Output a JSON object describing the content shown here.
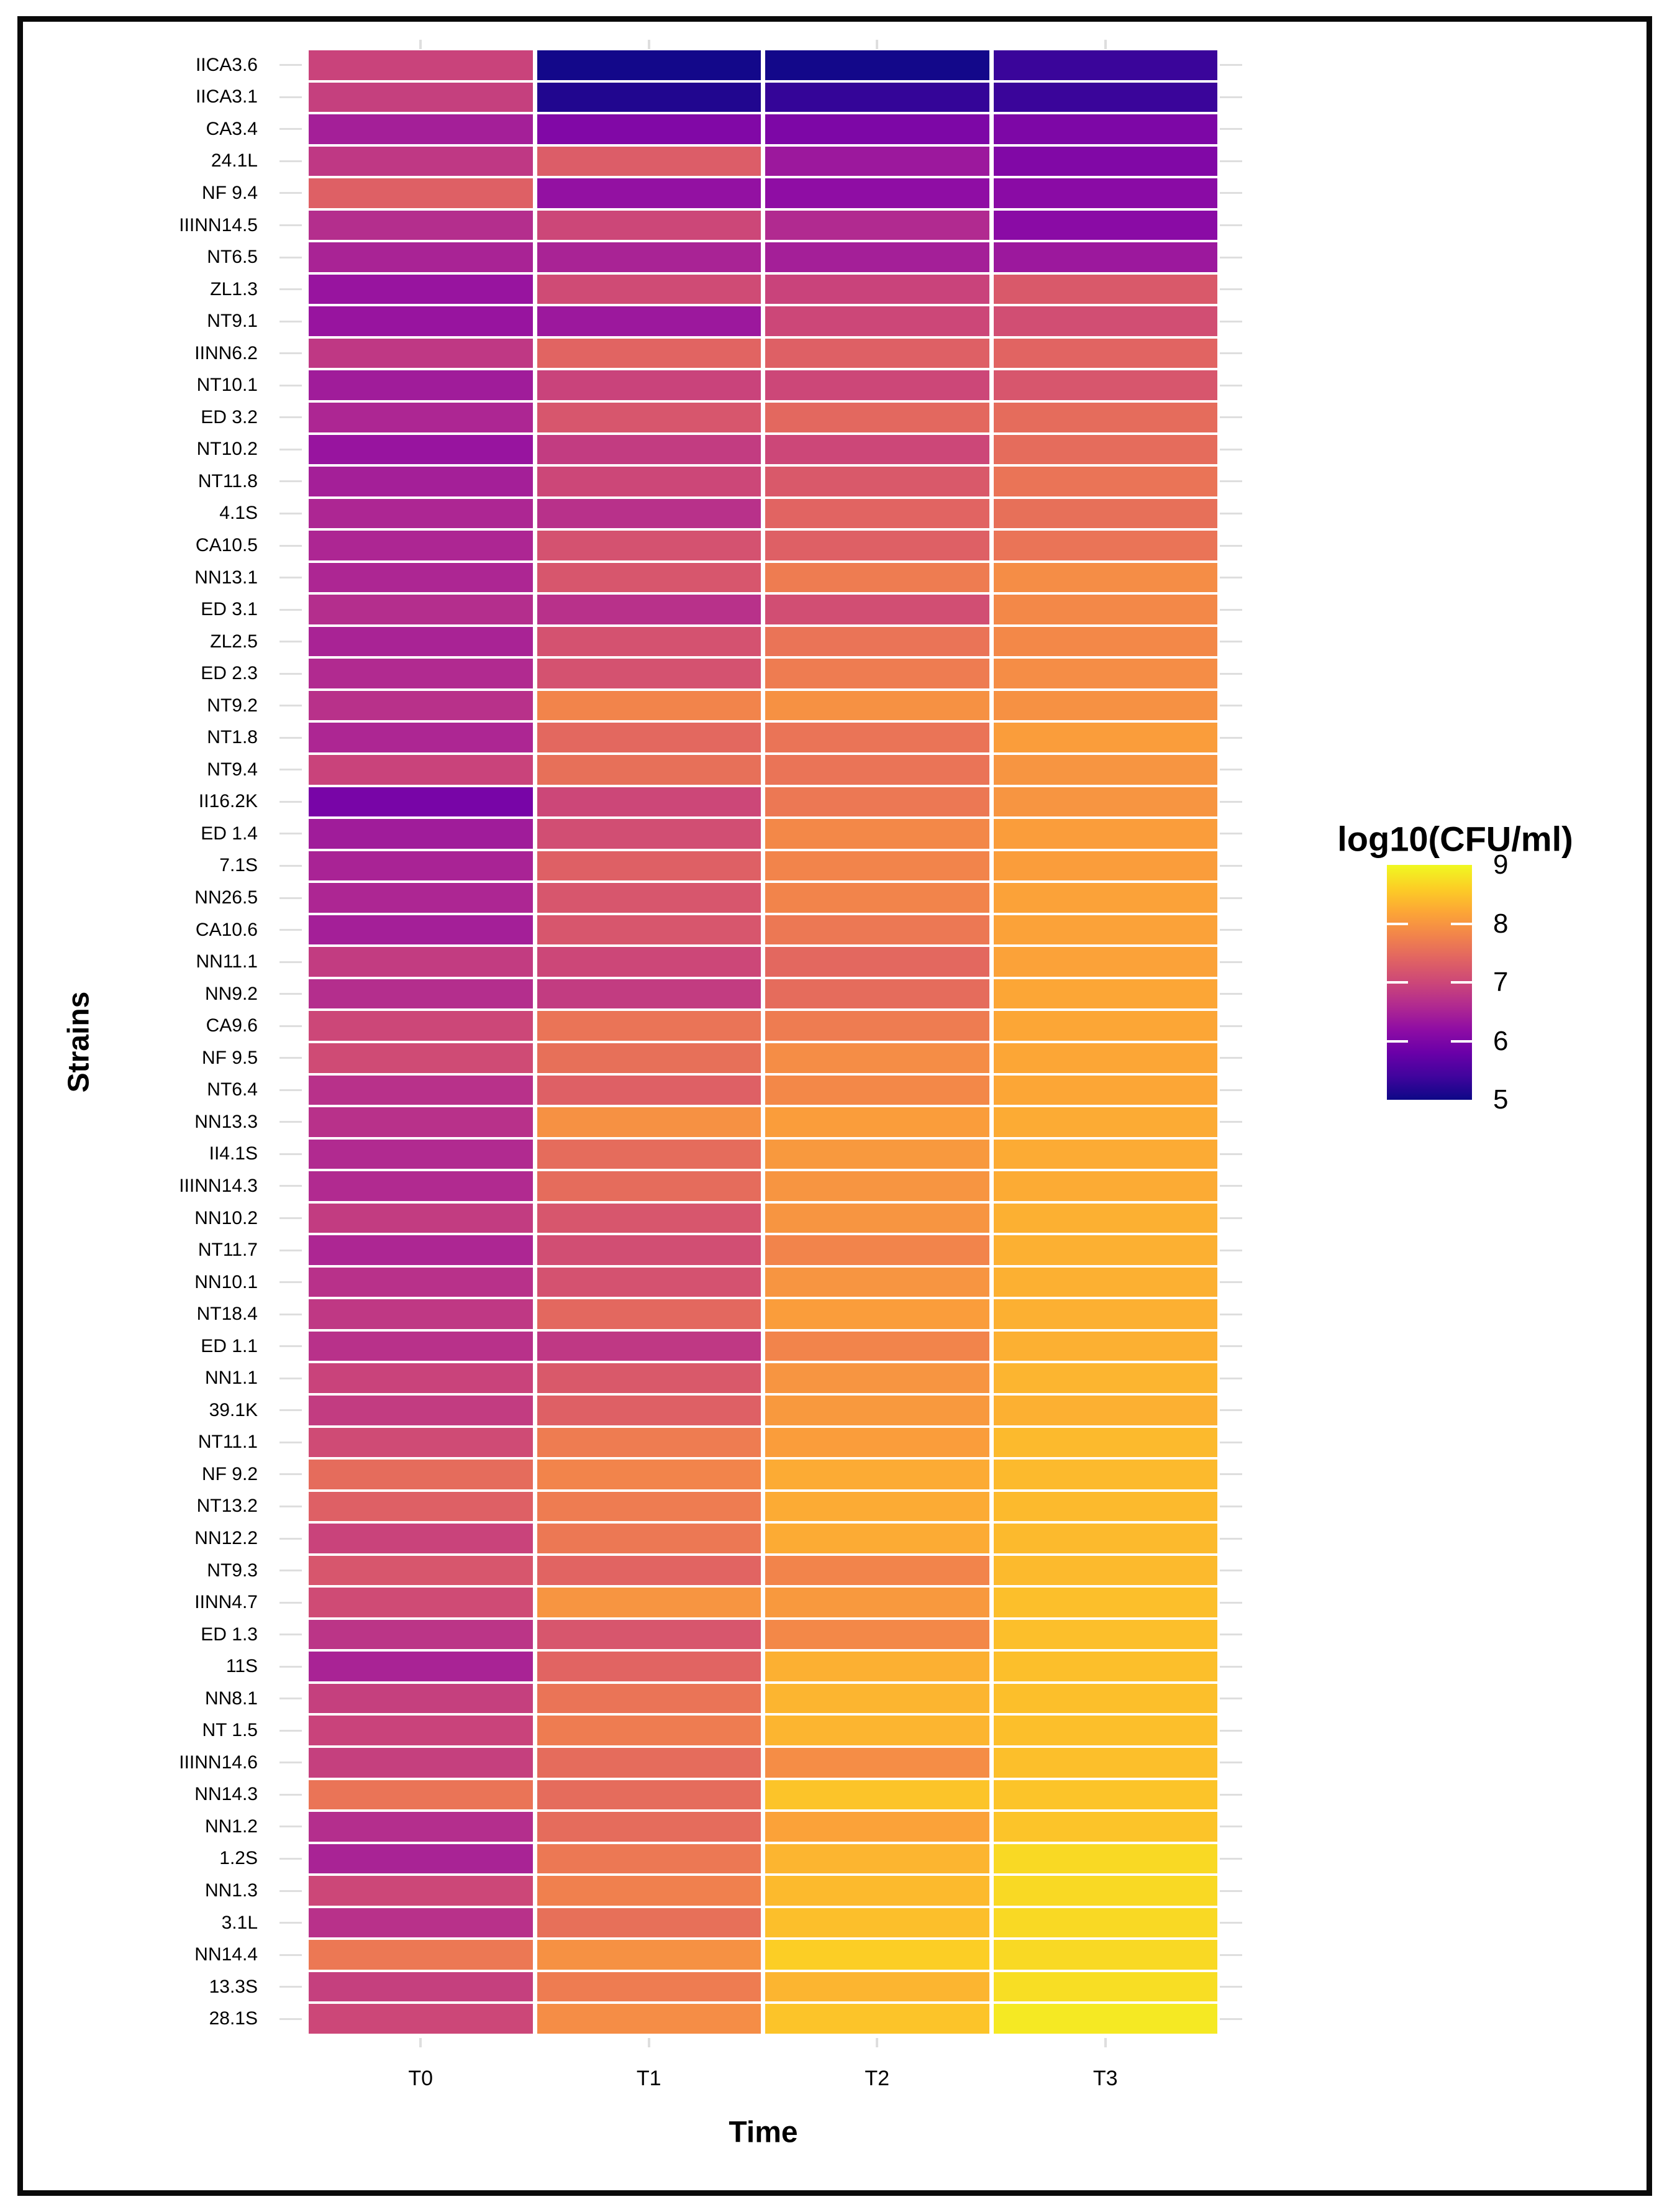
{
  "figure": {
    "background_color": "#ffffff",
    "frame_color": "#0a0a0a",
    "tick_color": "#dedede",
    "text_color": "#000000"
  },
  "legend": {
    "title": "log10(CFU/ml)"
  },
  "chart_data": {
    "type": "heatmap",
    "title": "",
    "xlabel": "Time",
    "ylabel": "Strains",
    "categories": [
      "T0",
      "T1",
      "T2",
      "T3"
    ],
    "value_label": "log10(CFU/ml)",
    "value_range": [
      5,
      9
    ],
    "legend_ticks": [
      9,
      8,
      7,
      6,
      5
    ],
    "legend_inner_ticks": [
      8,
      7,
      6
    ],
    "colormap": "plasma",
    "palette": [
      {
        "t": 0.0,
        "color": "#0d0887"
      },
      {
        "t": 0.1,
        "color": "#41049d"
      },
      {
        "t": 0.2,
        "color": "#6a00a8"
      },
      {
        "t": 0.3,
        "color": "#8f0da4"
      },
      {
        "t": 0.4,
        "color": "#b12a90"
      },
      {
        "t": 0.5,
        "color": "#cc4778"
      },
      {
        "t": 0.6,
        "color": "#e16462"
      },
      {
        "t": 0.7,
        "color": "#f2844b"
      },
      {
        "t": 0.8,
        "color": "#fca636"
      },
      {
        "t": 0.9,
        "color": "#fcce25"
      },
      {
        "t": 1.0,
        "color": "#f0f921"
      }
    ],
    "rows": [
      {
        "strain": "IICA3.6",
        "values": [
          6.95,
          5.05,
          5.05,
          5.35
        ]
      },
      {
        "strain": "IICA3.1",
        "values": [
          6.9,
          5.15,
          5.3,
          5.35
        ]
      },
      {
        "strain": "CA3.4",
        "values": [
          6.45,
          6.05,
          6.0,
          6.0
        ]
      },
      {
        "strain": "24.1L",
        "values": [
          6.8,
          7.3,
          6.35,
          6.05
        ]
      },
      {
        "strain": "NF 9.4",
        "values": [
          7.35,
          6.25,
          6.2,
          6.15
        ]
      },
      {
        "strain": "IIINN14.5",
        "values": [
          6.65,
          7.0,
          6.6,
          6.15
        ]
      },
      {
        "strain": "NT6.5",
        "values": [
          6.5,
          6.5,
          6.45,
          6.35
        ]
      },
      {
        "strain": "ZL1.3",
        "values": [
          6.3,
          7.05,
          6.95,
          7.25
        ]
      },
      {
        "strain": "NT9.1",
        "values": [
          6.3,
          6.35,
          7.0,
          7.1
        ]
      },
      {
        "strain": "IINN6.2",
        "values": [
          6.8,
          7.4,
          7.35,
          7.4
        ]
      },
      {
        "strain": "NT10.1",
        "values": [
          6.4,
          6.95,
          7.0,
          7.2
        ]
      },
      {
        "strain": "ED 3.2",
        "values": [
          6.55,
          7.2,
          7.45,
          7.5
        ]
      },
      {
        "strain": "NT10.2",
        "values": [
          6.3,
          6.85,
          7.0,
          7.5
        ]
      },
      {
        "strain": "NT11.8",
        "values": [
          6.45,
          7.0,
          7.25,
          7.6
        ]
      },
      {
        "strain": "4.1S",
        "values": [
          6.55,
          6.7,
          7.4,
          7.55
        ]
      },
      {
        "strain": "CA10.5",
        "values": [
          6.55,
          7.15,
          7.35,
          7.6
        ]
      },
      {
        "strain": "NN13.1",
        "values": [
          6.55,
          7.2,
          7.7,
          7.9
        ]
      },
      {
        "strain": "ED 3.1",
        "values": [
          6.65,
          6.7,
          7.1,
          7.85
        ]
      },
      {
        "strain": "ZL2.5",
        "values": [
          6.5,
          7.15,
          7.6,
          7.85
        ]
      },
      {
        "strain": "ED 2.3",
        "values": [
          6.6,
          7.15,
          7.7,
          7.9
        ]
      },
      {
        "strain": "NT9.2",
        "values": [
          6.7,
          7.8,
          7.95,
          7.95
        ]
      },
      {
        "strain": "NT1.8",
        "values": [
          6.55,
          7.45,
          7.6,
          8.1
        ]
      },
      {
        "strain": "NT9.4",
        "values": [
          6.95,
          7.55,
          7.6,
          8.0
        ]
      },
      {
        "strain": "II16.2K",
        "values": [
          5.95,
          7.0,
          7.65,
          8.0
        ]
      },
      {
        "strain": "ED 1.4",
        "values": [
          6.4,
          7.1,
          7.85,
          8.1
        ]
      },
      {
        "strain": "7.1S",
        "values": [
          6.5,
          7.35,
          7.8,
          8.1
        ]
      },
      {
        "strain": "NN26.5",
        "values": [
          6.55,
          7.2,
          7.8,
          8.15
        ]
      },
      {
        "strain": "CA10.6",
        "values": [
          6.45,
          7.2,
          7.65,
          8.15
        ]
      },
      {
        "strain": "NN11.1",
        "values": [
          6.85,
          7.0,
          7.45,
          8.15
        ]
      },
      {
        "strain": "NN9.2",
        "values": [
          6.65,
          6.85,
          7.5,
          8.2
        ]
      },
      {
        "strain": "CA9.6",
        "values": [
          7.0,
          7.6,
          7.7,
          8.2
        ]
      },
      {
        "strain": "NF 9.5",
        "values": [
          7.05,
          7.55,
          7.9,
          8.2
        ]
      },
      {
        "strain": "NT6.4",
        "values": [
          6.7,
          7.35,
          7.85,
          8.2
        ]
      },
      {
        "strain": "NN13.3",
        "values": [
          6.7,
          7.95,
          8.1,
          8.25
        ]
      },
      {
        "strain": "II4.1S",
        "values": [
          6.6,
          7.5,
          8.05,
          8.25
        ]
      },
      {
        "strain": "IIINN14.3",
        "values": [
          6.6,
          7.5,
          8.0,
          8.25
        ]
      },
      {
        "strain": "NN10.2",
        "values": [
          6.85,
          7.2,
          8.0,
          8.3
        ]
      },
      {
        "strain": "NT11.7",
        "values": [
          6.55,
          7.1,
          7.8,
          8.3
        ]
      },
      {
        "strain": "NN10.1",
        "values": [
          6.7,
          7.15,
          8.0,
          8.3
        ]
      },
      {
        "strain": "NT18.4",
        "values": [
          6.8,
          7.45,
          8.1,
          8.3
        ]
      },
      {
        "strain": "ED 1.1",
        "values": [
          6.7,
          6.8,
          7.8,
          8.3
        ]
      },
      {
        "strain": "NN1.1",
        "values": [
          6.95,
          7.25,
          8.0,
          8.35
        ]
      },
      {
        "strain": "39.1K",
        "values": [
          6.85,
          7.35,
          8.05,
          8.3
        ]
      },
      {
        "strain": "NT11.1",
        "values": [
          7.05,
          7.7,
          8.1,
          8.4
        ]
      },
      {
        "strain": "NF 9.2",
        "values": [
          7.5,
          7.8,
          8.25,
          8.4
        ]
      },
      {
        "strain": "NT13.2",
        "values": [
          7.35,
          7.7,
          8.25,
          8.4
        ]
      },
      {
        "strain": "NN12.2",
        "values": [
          6.95,
          7.65,
          8.25,
          8.4
        ]
      },
      {
        "strain": "NT9.3",
        "values": [
          7.2,
          7.4,
          7.8,
          8.4
        ]
      },
      {
        "strain": "IINN4.7",
        "values": [
          7.05,
          8.0,
          8.05,
          8.45
        ]
      },
      {
        "strain": "ED 1.3",
        "values": [
          6.75,
          7.2,
          7.85,
          8.45
        ]
      },
      {
        "strain": "11S",
        "values": [
          6.5,
          7.4,
          8.3,
          8.45
        ]
      },
      {
        "strain": "NN8.1",
        "values": [
          6.9,
          7.6,
          8.35,
          8.45
        ]
      },
      {
        "strain": "NT 1.5",
        "values": [
          6.95,
          7.7,
          8.35,
          8.45
        ]
      },
      {
        "strain": "IIINN14.6",
        "values": [
          6.9,
          7.5,
          7.9,
          8.45
        ]
      },
      {
        "strain": "NN14.3",
        "values": [
          7.6,
          7.5,
          8.5,
          8.5
        ]
      },
      {
        "strain": "NN1.2",
        "values": [
          6.65,
          7.5,
          8.15,
          8.5
        ]
      },
      {
        "strain": "1.2S",
        "values": [
          6.5,
          7.65,
          8.35,
          8.7
        ]
      },
      {
        "strain": "NN1.3",
        "values": [
          7.0,
          7.75,
          8.4,
          8.7
        ]
      },
      {
        "strain": "3.1L",
        "values": [
          6.7,
          7.55,
          8.45,
          8.7
        ]
      },
      {
        "strain": "NN14.4",
        "values": [
          7.65,
          7.95,
          8.6,
          8.7
        ]
      },
      {
        "strain": "13.3S",
        "values": [
          6.9,
          7.7,
          8.35,
          8.75
        ]
      },
      {
        "strain": "28.1S",
        "values": [
          7.0,
          7.9,
          8.5,
          8.85
        ]
      }
    ]
  }
}
